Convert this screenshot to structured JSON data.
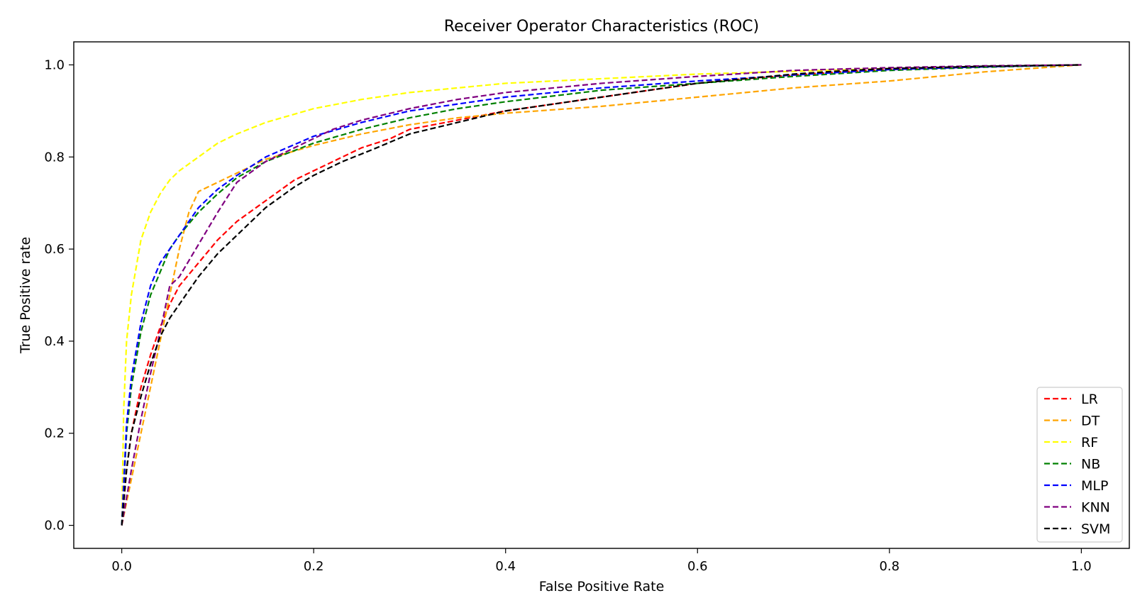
{
  "chart_data": {
    "type": "line",
    "title": "Receiver Operator Characteristics (ROC)",
    "xlabel": "False Positive Rate",
    "ylabel": "True Positive rate",
    "xlim": [
      -0.05,
      1.05
    ],
    "ylim": [
      -0.05,
      1.05
    ],
    "xticks": [
      0.0,
      0.2,
      0.4,
      0.6,
      0.8,
      1.0
    ],
    "xtick_labels": [
      "0.0",
      "0.2",
      "0.4",
      "0.6",
      "0.8",
      "1.0"
    ],
    "yticks": [
      0.0,
      0.2,
      0.4,
      0.6,
      0.8,
      1.0
    ],
    "ytick_labels": [
      "0.0",
      "0.2",
      "0.4",
      "0.6",
      "0.8",
      "1.0"
    ],
    "grid": false,
    "legend_position": "lower-right",
    "line_style": "dashed",
    "series": [
      {
        "name": "LR",
        "color": "#ff0000",
        "x": [
          0.0,
          0.005,
          0.01,
          0.02,
          0.03,
          0.04,
          0.05,
          0.06,
          0.08,
          0.1,
          0.12,
          0.14,
          0.16,
          0.18,
          0.2,
          0.22,
          0.25,
          0.28,
          0.3,
          0.35,
          0.4,
          0.45,
          0.5,
          0.55,
          0.6,
          0.65,
          0.7,
          0.75,
          0.8,
          0.85,
          0.9,
          0.95,
          1.0
        ],
        "y": [
          0.0,
          0.12,
          0.2,
          0.3,
          0.37,
          0.43,
          0.48,
          0.52,
          0.57,
          0.62,
          0.66,
          0.69,
          0.72,
          0.75,
          0.77,
          0.79,
          0.82,
          0.84,
          0.86,
          0.88,
          0.9,
          0.915,
          0.93,
          0.945,
          0.96,
          0.97,
          0.978,
          0.985,
          0.99,
          0.993,
          0.996,
          0.998,
          1.0
        ]
      },
      {
        "name": "DT",
        "color": "#ffa500",
        "x": [
          0.0,
          0.02,
          0.04,
          0.06,
          0.07,
          0.08,
          0.1,
          0.12,
          0.15,
          0.2,
          0.25,
          0.3,
          0.35,
          0.4,
          0.5,
          0.6,
          0.7,
          0.8,
          0.9,
          1.0
        ],
        "y": [
          0.0,
          0.2,
          0.4,
          0.6,
          0.68,
          0.725,
          0.745,
          0.765,
          0.795,
          0.825,
          0.85,
          0.87,
          0.885,
          0.895,
          0.91,
          0.93,
          0.95,
          0.965,
          0.985,
          1.0
        ]
      },
      {
        "name": "RF",
        "color": "#ffff00",
        "x": [
          0.0,
          0.002,
          0.005,
          0.01,
          0.02,
          0.03,
          0.04,
          0.05,
          0.06,
          0.08,
          0.1,
          0.12,
          0.15,
          0.2,
          0.25,
          0.3,
          0.35,
          0.4,
          0.45,
          0.5,
          0.6,
          0.7,
          0.8,
          0.9,
          1.0
        ],
        "y": [
          0.0,
          0.25,
          0.4,
          0.5,
          0.62,
          0.68,
          0.72,
          0.75,
          0.77,
          0.8,
          0.83,
          0.85,
          0.875,
          0.905,
          0.925,
          0.94,
          0.95,
          0.96,
          0.965,
          0.97,
          0.98,
          0.986,
          0.992,
          0.996,
          1.0
        ]
      },
      {
        "name": "NB",
        "color": "#008000",
        "x": [
          0.0,
          0.005,
          0.01,
          0.02,
          0.03,
          0.04,
          0.05,
          0.06,
          0.08,
          0.1,
          0.12,
          0.15,
          0.2,
          0.25,
          0.3,
          0.35,
          0.4,
          0.5,
          0.6,
          0.7,
          0.8,
          0.9,
          1.0
        ],
        "y": [
          0.0,
          0.2,
          0.3,
          0.42,
          0.5,
          0.55,
          0.6,
          0.63,
          0.68,
          0.72,
          0.755,
          0.79,
          0.83,
          0.86,
          0.885,
          0.905,
          0.92,
          0.945,
          0.96,
          0.975,
          0.988,
          0.995,
          1.0
        ]
      },
      {
        "name": "MLP",
        "color": "#0000ff",
        "x": [
          0.0,
          0.005,
          0.01,
          0.02,
          0.03,
          0.04,
          0.06,
          0.08,
          0.1,
          0.12,
          0.15,
          0.2,
          0.25,
          0.3,
          0.35,
          0.4,
          0.5,
          0.6,
          0.7,
          0.8,
          0.9,
          1.0
        ],
        "y": [
          0.0,
          0.22,
          0.32,
          0.44,
          0.52,
          0.57,
          0.63,
          0.69,
          0.73,
          0.76,
          0.8,
          0.845,
          0.875,
          0.9,
          0.915,
          0.93,
          0.95,
          0.965,
          0.978,
          0.99,
          0.996,
          1.0
        ]
      },
      {
        "name": "KNN",
        "color": "#800080",
        "x": [
          0.0,
          0.01,
          0.02,
          0.03,
          0.04,
          0.05,
          0.06,
          0.08,
          0.1,
          0.12,
          0.15,
          0.18,
          0.2,
          0.22,
          0.25,
          0.3,
          0.35,
          0.4,
          0.5,
          0.6,
          0.7,
          0.8,
          0.9,
          1.0
        ],
        "y": [
          0.0,
          0.12,
          0.23,
          0.33,
          0.42,
          0.52,
          0.54,
          0.61,
          0.68,
          0.745,
          0.79,
          0.82,
          0.84,
          0.86,
          0.88,
          0.905,
          0.925,
          0.94,
          0.96,
          0.975,
          0.988,
          0.994,
          0.998,
          1.0
        ]
      },
      {
        "name": "SVM",
        "color": "#000000",
        "x": [
          0.0,
          0.005,
          0.01,
          0.02,
          0.03,
          0.04,
          0.05,
          0.06,
          0.08,
          0.1,
          0.12,
          0.15,
          0.18,
          0.2,
          0.23,
          0.26,
          0.3,
          0.35,
          0.4,
          0.45,
          0.5,
          0.55,
          0.6,
          0.65,
          0.7,
          0.75,
          0.8,
          0.9,
          1.0
        ],
        "y": [
          0.0,
          0.12,
          0.2,
          0.28,
          0.35,
          0.41,
          0.45,
          0.48,
          0.54,
          0.59,
          0.63,
          0.69,
          0.735,
          0.76,
          0.79,
          0.815,
          0.85,
          0.875,
          0.9,
          0.915,
          0.93,
          0.945,
          0.96,
          0.97,
          0.98,
          0.987,
          0.992,
          0.997,
          1.0
        ]
      }
    ]
  }
}
